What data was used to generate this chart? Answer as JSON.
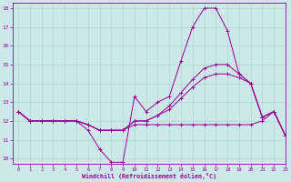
{
  "xlabel": "Windchill (Refroidissement éolien,°C)",
  "xlim": [
    -0.5,
    23
  ],
  "ylim": [
    9.7,
    18.3
  ],
  "yticks": [
    10,
    11,
    12,
    13,
    14,
    15,
    16,
    17,
    18
  ],
  "xticks": [
    0,
    1,
    2,
    3,
    4,
    5,
    6,
    7,
    8,
    9,
    10,
    11,
    12,
    13,
    14,
    15,
    16,
    17,
    18,
    19,
    20,
    21,
    22,
    23
  ],
  "bg_color": "#cde8e8",
  "line_color": "#990099",
  "grid_color": "#aad4d4",
  "line_high_x": [
    0,
    1,
    2,
    3,
    4,
    5,
    6,
    7,
    8,
    9,
    10,
    11,
    12,
    13,
    14,
    15,
    16,
    17,
    18,
    19,
    20,
    21,
    22,
    23
  ],
  "line_high_y": [
    12.5,
    12.0,
    12.0,
    12.0,
    12.0,
    12.0,
    11.5,
    10.5,
    9.8,
    9.8,
    13.3,
    12.5,
    13.0,
    13.3,
    15.2,
    17.0,
    18.0,
    18.0,
    16.8,
    14.5,
    14.0,
    12.2,
    12.5,
    11.2
  ],
  "line_mid1_x": [
    0,
    1,
    2,
    3,
    4,
    5,
    6,
    7,
    8,
    9,
    10,
    11,
    12,
    13,
    14,
    15,
    16,
    17,
    18,
    19,
    20,
    21,
    22,
    23
  ],
  "line_mid1_y": [
    12.5,
    12.0,
    12.0,
    12.0,
    12.0,
    12.0,
    11.8,
    11.5,
    11.5,
    11.5,
    12.0,
    12.0,
    12.3,
    12.8,
    13.5,
    14.2,
    14.8,
    15.0,
    15.0,
    14.5,
    14.0,
    12.2,
    12.5,
    11.2
  ],
  "line_mid2_x": [
    0,
    1,
    2,
    3,
    4,
    5,
    6,
    7,
    8,
    9,
    10,
    11,
    12,
    13,
    14,
    15,
    16,
    17,
    18,
    19,
    20,
    21,
    22,
    23
  ],
  "line_mid2_y": [
    12.5,
    12.0,
    12.0,
    12.0,
    12.0,
    12.0,
    11.8,
    11.5,
    11.5,
    11.5,
    12.0,
    12.0,
    12.3,
    12.6,
    13.2,
    13.8,
    14.3,
    14.5,
    14.5,
    14.3,
    14.0,
    12.2,
    12.5,
    11.2
  ],
  "line_low_x": [
    0,
    1,
    2,
    3,
    4,
    5,
    6,
    7,
    8,
    9,
    10,
    11,
    12,
    13,
    14,
    15,
    16,
    17,
    18,
    19,
    20,
    21,
    22,
    23
  ],
  "line_low_y": [
    12.5,
    12.0,
    12.0,
    12.0,
    12.0,
    12.0,
    11.8,
    11.5,
    11.5,
    11.5,
    11.8,
    11.8,
    11.8,
    11.8,
    11.8,
    11.8,
    11.8,
    11.8,
    11.8,
    11.8,
    11.8,
    12.0,
    12.5,
    11.2
  ]
}
